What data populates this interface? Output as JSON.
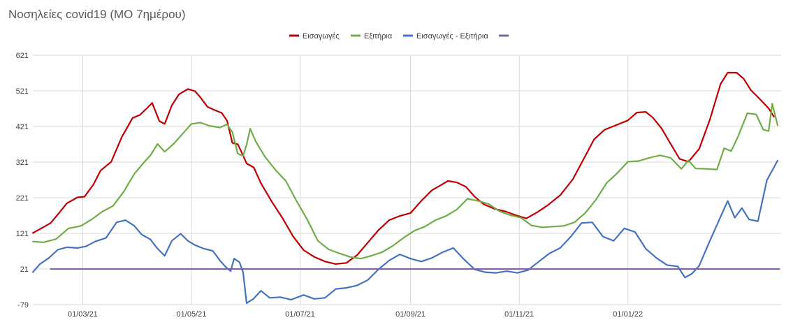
{
  "chart_data": {
    "type": "line",
    "title": "Νοσηλείες covid19 (ΜΟ 7ημέρου)",
    "xlabel": "",
    "ylabel": "",
    "ylim": [
      -79,
      621
    ],
    "yticks": [
      -79,
      21,
      121,
      221,
      321,
      421,
      521,
      621
    ],
    "x_start": "2021-02-01",
    "x_end": "2022-02-01",
    "xticks": [
      {
        "date": "2021-03-01",
        "label": "01/03/21"
      },
      {
        "date": "2021-05-01",
        "label": "01/05/21"
      },
      {
        "date": "2021-07-01",
        "label": "01/07/21"
      },
      {
        "date": "2021-09-01",
        "label": "01/09/21"
      },
      {
        "date": "2021-11-01",
        "label": "01/11/21"
      },
      {
        "date": "2022-01-01",
        "label": "01/01/22"
      }
    ],
    "grid": true,
    "legend_position": "top",
    "series": [
      {
        "name": "Εισαγωγές",
        "color": "#C00000",
        "points": [
          [
            "2021-02-01",
            122
          ],
          [
            "2021-02-06",
            136
          ],
          [
            "2021-02-11",
            150
          ],
          [
            "2021-02-16",
            180
          ],
          [
            "2021-02-20",
            205
          ],
          [
            "2021-02-26",
            222
          ],
          [
            "2021-03-02",
            224
          ],
          [
            "2021-03-07",
            258
          ],
          [
            "2021-03-11",
            297
          ],
          [
            "2021-03-17",
            322
          ],
          [
            "2021-03-23",
            392
          ],
          [
            "2021-03-29",
            445
          ],
          [
            "2021-04-02",
            453
          ],
          [
            "2021-04-06",
            472
          ],
          [
            "2021-04-09",
            487
          ],
          [
            "2021-04-13",
            436
          ],
          [
            "2021-04-16",
            428
          ],
          [
            "2021-04-20",
            480
          ],
          [
            "2021-04-24",
            511
          ],
          [
            "2021-04-29",
            526
          ],
          [
            "2021-05-03",
            520
          ],
          [
            "2021-05-06",
            503
          ],
          [
            "2021-05-10",
            476
          ],
          [
            "2021-05-14",
            467
          ],
          [
            "2021-05-18",
            459
          ],
          [
            "2021-05-21",
            437
          ],
          [
            "2021-05-24",
            375
          ],
          [
            "2021-05-27",
            371
          ],
          [
            "2021-05-29",
            350
          ],
          [
            "2021-06-01",
            317
          ],
          [
            "2021-06-05",
            306
          ],
          [
            "2021-06-09",
            262
          ],
          [
            "2021-06-15",
            211
          ],
          [
            "2021-06-21",
            165
          ],
          [
            "2021-06-27",
            113
          ],
          [
            "2021-07-03",
            74
          ],
          [
            "2021-07-09",
            55
          ],
          [
            "2021-07-15",
            42
          ],
          [
            "2021-07-21",
            35
          ],
          [
            "2021-07-27",
            38
          ],
          [
            "2021-08-02",
            60
          ],
          [
            "2021-08-08",
            95
          ],
          [
            "2021-08-14",
            130
          ],
          [
            "2021-08-20",
            158
          ],
          [
            "2021-08-26",
            170
          ],
          [
            "2021-09-01",
            178
          ],
          [
            "2021-09-07",
            212
          ],
          [
            "2021-09-13",
            242
          ],
          [
            "2021-09-18",
            256
          ],
          [
            "2021-09-22",
            268
          ],
          [
            "2021-09-27",
            264
          ],
          [
            "2021-10-02",
            252
          ],
          [
            "2021-10-07",
            224
          ],
          [
            "2021-10-12",
            203
          ],
          [
            "2021-10-18",
            190
          ],
          [
            "2021-10-24",
            183
          ],
          [
            "2021-10-30",
            172
          ],
          [
            "2021-11-05",
            163
          ],
          [
            "2021-11-11",
            180
          ],
          [
            "2021-11-17",
            200
          ],
          [
            "2021-11-24",
            228
          ],
          [
            "2021-12-01",
            272
          ],
          [
            "2021-12-07",
            328
          ],
          [
            "2021-12-13",
            385
          ],
          [
            "2021-12-19",
            412
          ],
          [
            "2021-12-25",
            424
          ],
          [
            "2022-01-01",
            438
          ],
          [
            "2022-01-06",
            460
          ],
          [
            "2022-01-11",
            462
          ],
          [
            "2022-01-15",
            446
          ],
          [
            "2022-01-20",
            415
          ],
          [
            "2022-01-25",
            372
          ],
          [
            "2022-01-30",
            330
          ],
          [
            "2022-02-04",
            322
          ],
          [
            "2022-02-10",
            358
          ],
          [
            "2022-02-16",
            440
          ],
          [
            "2022-02-22",
            540
          ],
          [
            "2022-02-26",
            572
          ],
          [
            "2022-03-03",
            572
          ],
          [
            "2022-03-07",
            555
          ],
          [
            "2022-03-11",
            523
          ],
          [
            "2022-03-16",
            498
          ],
          [
            "2022-03-21",
            472
          ],
          [
            "2022-03-24",
            448
          ]
        ]
      },
      {
        "name": "Εξιτήρια",
        "color": "#70AD47",
        "points": [
          [
            "2021-02-01",
            98
          ],
          [
            "2021-02-07",
            96
          ],
          [
            "2021-02-14",
            105
          ],
          [
            "2021-02-21",
            135
          ],
          [
            "2021-02-28",
            142
          ],
          [
            "2021-03-06",
            160
          ],
          [
            "2021-03-12",
            182
          ],
          [
            "2021-03-18",
            198
          ],
          [
            "2021-03-24",
            238
          ],
          [
            "2021-03-30",
            288
          ],
          [
            "2021-04-04",
            318
          ],
          [
            "2021-04-08",
            340
          ],
          [
            "2021-04-12",
            372
          ],
          [
            "2021-04-16",
            350
          ],
          [
            "2021-04-21",
            372
          ],
          [
            "2021-04-26",
            400
          ],
          [
            "2021-05-01",
            428
          ],
          [
            "2021-05-06",
            432
          ],
          [
            "2021-05-11",
            423
          ],
          [
            "2021-05-17",
            418
          ],
          [
            "2021-05-21",
            427
          ],
          [
            "2021-05-24",
            405
          ],
          [
            "2021-05-27",
            345
          ],
          [
            "2021-05-30",
            338
          ],
          [
            "2021-06-01",
            370
          ],
          [
            "2021-06-03",
            415
          ],
          [
            "2021-06-06",
            380
          ],
          [
            "2021-06-11",
            338
          ],
          [
            "2021-06-17",
            300
          ],
          [
            "2021-06-23",
            268
          ],
          [
            "2021-06-29",
            212
          ],
          [
            "2021-07-05",
            160
          ],
          [
            "2021-07-11",
            100
          ],
          [
            "2021-07-17",
            76
          ],
          [
            "2021-07-23",
            65
          ],
          [
            "2021-07-29",
            55
          ],
          [
            "2021-08-04",
            50
          ],
          [
            "2021-08-10",
            58
          ],
          [
            "2021-08-16",
            68
          ],
          [
            "2021-08-22",
            86
          ],
          [
            "2021-08-28",
            108
          ],
          [
            "2021-09-03",
            128
          ],
          [
            "2021-09-09",
            140
          ],
          [
            "2021-09-15",
            158
          ],
          [
            "2021-09-21",
            170
          ],
          [
            "2021-09-27",
            188
          ],
          [
            "2021-10-03",
            218
          ],
          [
            "2021-10-09",
            212
          ],
          [
            "2021-10-15",
            203
          ],
          [
            "2021-10-21",
            183
          ],
          [
            "2021-10-27",
            172
          ],
          [
            "2021-11-02",
            165
          ],
          [
            "2021-11-08",
            143
          ],
          [
            "2021-11-14",
            138
          ],
          [
            "2021-11-20",
            140
          ],
          [
            "2021-11-26",
            142
          ],
          [
            "2021-12-02",
            152
          ],
          [
            "2021-12-08",
            178
          ],
          [
            "2021-12-14",
            215
          ],
          [
            "2021-12-20",
            262
          ],
          [
            "2021-12-26",
            290
          ],
          [
            "2022-01-01",
            322
          ],
          [
            "2022-01-07",
            324
          ],
          [
            "2022-01-13",
            333
          ],
          [
            "2022-01-19",
            340
          ],
          [
            "2022-01-25",
            333
          ],
          [
            "2022-01-31",
            302
          ],
          [
            "2022-02-04",
            326
          ],
          [
            "2022-02-08",
            303
          ],
          [
            "2022-02-14",
            302
          ],
          [
            "2022-02-20",
            300
          ],
          [
            "2022-02-24",
            360
          ],
          [
            "2022-02-28",
            352
          ],
          [
            "2022-03-04",
            395
          ],
          [
            "2022-03-09",
            458
          ],
          [
            "2022-03-14",
            455
          ],
          [
            "2022-03-18",
            412
          ],
          [
            "2022-03-21",
            408
          ],
          [
            "2022-03-23",
            485
          ],
          [
            "2022-03-26",
            425
          ]
        ]
      },
      {
        "name": "Εισαγωγές - Εξιτήρια",
        "color": "#4472C4",
        "points": [
          [
            "2021-02-01",
            12
          ],
          [
            "2021-02-05",
            35
          ],
          [
            "2021-02-10",
            52
          ],
          [
            "2021-02-15",
            75
          ],
          [
            "2021-02-20",
            82
          ],
          [
            "2021-02-26",
            80
          ],
          [
            "2021-03-03",
            85
          ],
          [
            "2021-03-08",
            98
          ],
          [
            "2021-03-14",
            108
          ],
          [
            "2021-03-20",
            152
          ],
          [
            "2021-03-25",
            158
          ],
          [
            "2021-03-30",
            142
          ],
          [
            "2021-04-03",
            118
          ],
          [
            "2021-04-08",
            104
          ],
          [
            "2021-04-12",
            78
          ],
          [
            "2021-04-16",
            58
          ],
          [
            "2021-04-20",
            100
          ],
          [
            "2021-04-25",
            120
          ],
          [
            "2021-04-29",
            100
          ],
          [
            "2021-05-03",
            88
          ],
          [
            "2021-05-08",
            78
          ],
          [
            "2021-05-13",
            72
          ],
          [
            "2021-05-17",
            45
          ],
          [
            "2021-05-20",
            28
          ],
          [
            "2021-05-23",
            15
          ],
          [
            "2021-05-25",
            50
          ],
          [
            "2021-05-28",
            40
          ],
          [
            "2021-05-30",
            12
          ],
          [
            "2021-06-01",
            -75
          ],
          [
            "2021-06-05",
            -62
          ],
          [
            "2021-06-09",
            -40
          ],
          [
            "2021-06-14",
            -60
          ],
          [
            "2021-06-20",
            -58
          ],
          [
            "2021-06-26",
            -65
          ],
          [
            "2021-07-03",
            -52
          ],
          [
            "2021-07-09",
            -63
          ],
          [
            "2021-07-15",
            -60
          ],
          [
            "2021-07-21",
            -35
          ],
          [
            "2021-07-27",
            -32
          ],
          [
            "2021-08-02",
            -25
          ],
          [
            "2021-08-08",
            -10
          ],
          [
            "2021-08-14",
            20
          ],
          [
            "2021-08-20",
            45
          ],
          [
            "2021-08-26",
            62
          ],
          [
            "2021-09-01",
            50
          ],
          [
            "2021-09-07",
            42
          ],
          [
            "2021-09-13",
            52
          ],
          [
            "2021-09-19",
            68
          ],
          [
            "2021-09-25",
            80
          ],
          [
            "2021-10-01",
            48
          ],
          [
            "2021-10-07",
            20
          ],
          [
            "2021-10-13",
            12
          ],
          [
            "2021-10-19",
            10
          ],
          [
            "2021-10-25",
            15
          ],
          [
            "2021-10-31",
            10
          ],
          [
            "2021-11-06",
            18
          ],
          [
            "2021-11-12",
            42
          ],
          [
            "2021-11-18",
            65
          ],
          [
            "2021-11-24",
            80
          ],
          [
            "2021-11-30",
            112
          ],
          [
            "2021-12-06",
            150
          ],
          [
            "2021-12-12",
            152
          ],
          [
            "2021-12-18",
            112
          ],
          [
            "2021-12-24",
            100
          ],
          [
            "2021-12-30",
            135
          ],
          [
            "2022-01-05",
            125
          ],
          [
            "2022-01-11",
            78
          ],
          [
            "2022-01-17",
            52
          ],
          [
            "2022-01-23",
            32
          ],
          [
            "2022-01-29",
            28
          ],
          [
            "2022-02-02",
            -3
          ],
          [
            "2022-02-06",
            8
          ],
          [
            "2022-02-10",
            30
          ],
          [
            "2022-02-16",
            100
          ],
          [
            "2022-02-20",
            145
          ],
          [
            "2022-02-26",
            212
          ],
          [
            "2022-03-02",
            165
          ],
          [
            "2022-03-06",
            192
          ],
          [
            "2022-03-10",
            160
          ],
          [
            "2022-03-15",
            155
          ],
          [
            "2022-03-20",
            270
          ],
          [
            "2022-03-26",
            325
          ]
        ]
      },
      {
        "name": "",
        "color": "#7F5FA8",
        "points": [
          [
            "2021-02-11",
            21
          ],
          [
            "2022-03-27",
            21
          ]
        ]
      }
    ]
  }
}
